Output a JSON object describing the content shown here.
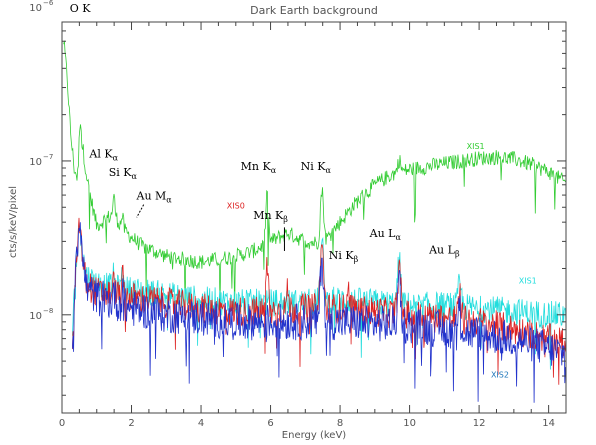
{
  "chart_data": {
    "type": "line",
    "title": "Dark Earth background",
    "xlabel": "Energy (keV)",
    "ylabel": "cts/s/keV/pixel",
    "xlim": [
      0,
      14.5
    ],
    "ylim": [
      2.3e-09,
      8e-07
    ],
    "yscale": "log",
    "x_ticks": [
      0,
      2,
      4,
      6,
      8,
      10,
      12,
      14
    ],
    "x_tick_labels": [
      "0",
      "2",
      "4",
      "6",
      "8",
      "10",
      "12",
      "14"
    ],
    "y_ticks": [
      1e-08,
      1e-07,
      1e-06
    ],
    "y_tick_labels": [
      {
        "base": "10",
        "exp": "−8"
      },
      {
        "base": "10",
        "exp": "−7"
      },
      {
        "base": "10",
        "exp": "−6"
      }
    ],
    "series": [
      {
        "name": "XIS1",
        "color": "#33cc33",
        "x": [
          0.05,
          0.15,
          0.25,
          0.35,
          0.5,
          0.6,
          0.75,
          1.0,
          1.25,
          1.5,
          1.75,
          2.0,
          2.3,
          3.0,
          4.0,
          5.0,
          5.5,
          6.0,
          6.5,
          7.0,
          7.5,
          8.0,
          8.5,
          9.0,
          9.5,
          10.0,
          10.5,
          11.0,
          11.5,
          12.0,
          12.5,
          13.0,
          13.5,
          14.0,
          14.5
        ],
        "y": [
          6e-07,
          3.5e-07,
          1.5e-07,
          9e-08,
          7e-08,
          1.2e-07,
          7e-08,
          3.8e-08,
          4.2e-08,
          4.5e-08,
          3.6e-08,
          3.2e-08,
          2.8e-08,
          2.4e-08,
          2.2e-08,
          2.4e-08,
          2.6e-08,
          3e-08,
          3.4e-08,
          3e-08,
          2.9e-08,
          4e-08,
          5.5e-08,
          7e-08,
          8.2e-08,
          8.8e-08,
          9.2e-08,
          9.6e-08,
          1e-07,
          1.04e-07,
          1.06e-07,
          1.03e-07,
          9.5e-08,
          8.5e-08,
          7.2e-08
        ]
      },
      {
        "name": "XIS0",
        "color": "#dd2222",
        "x": [
          0.3,
          0.4,
          0.5,
          0.7,
          1.0,
          1.5,
          2.0,
          3.0,
          4.0,
          5.0,
          6.0,
          7.0,
          8.0,
          9.0,
          10.0,
          11.0,
          12.0,
          13.0,
          14.0,
          14.5
        ],
        "y": [
          5e-09,
          2e-08,
          3e-08,
          1.6e-08,
          1.4e-08,
          1.35e-08,
          1.3e-08,
          1.2e-08,
          1.1e-08,
          1.05e-08,
          1.05e-08,
          1.1e-08,
          1.1e-08,
          1.05e-08,
          1e-08,
          9.5e-09,
          9e-09,
          8e-09,
          7e-09,
          6.5e-09
        ]
      },
      {
        "name": "XIS1",
        "color": "#22dddd",
        "x": [
          0.3,
          0.4,
          0.5,
          0.7,
          1.0,
          1.5,
          2.0,
          3.0,
          4.0,
          5.0,
          6.0,
          7.0,
          8.0,
          9.0,
          10.0,
          11.0,
          12.0,
          13.0,
          14.0,
          14.5
        ],
        "y": [
          8e-09,
          2.2e-08,
          3.2e-08,
          1.8e-08,
          1.6e-08,
          1.5e-08,
          1.45e-08,
          1.35e-08,
          1.25e-08,
          1.2e-08,
          1.2e-08,
          1.2e-08,
          1.25e-08,
          1.2e-08,
          1.15e-08,
          1.15e-08,
          1.1e-08,
          1.05e-08,
          1e-08,
          1e-08
        ]
      },
      {
        "name": "XIS2",
        "color": "#2233cc",
        "x": [
          0.3,
          0.4,
          0.5,
          0.7,
          1.0,
          1.5,
          2.0,
          3.0,
          4.0,
          5.0,
          6.0,
          7.0,
          8.0,
          9.0,
          10.0,
          11.0,
          12.0,
          13.0,
          14.0,
          14.5
        ],
        "y": [
          6e-09,
          2.5e-08,
          3.5e-08,
          1.5e-08,
          1.3e-08,
          1.2e-08,
          1.1e-08,
          1e-08,
          9.5e-09,
          9e-09,
          9e-09,
          9e-09,
          9e-09,
          8.8e-09,
          8.5e-09,
          8e-09,
          7.5e-09,
          7e-09,
          6e-09,
          5.5e-09
        ]
      }
    ],
    "peaks": [
      {
        "series": 0,
        "x": 0.52,
        "w": 0.04,
        "f": 2.4
      },
      {
        "series": 0,
        "x": 1.49,
        "w": 0.04,
        "f": 1.3
      },
      {
        "series": 0,
        "x": 1.74,
        "w": 0.04,
        "f": 1.2
      },
      {
        "series": 0,
        "x": 5.9,
        "w": 0.05,
        "f": 2.0
      },
      {
        "series": 0,
        "x": 7.48,
        "w": 0.06,
        "f": 2.2
      },
      {
        "series": 0,
        "x": 9.7,
        "w": 0.06,
        "f": 1.2
      },
      {
        "series": 1,
        "x": 0.52,
        "w": 0.04,
        "f": 1.4
      },
      {
        "series": 1,
        "x": 1.49,
        "w": 0.04,
        "f": 1.2
      },
      {
        "series": 1,
        "x": 1.74,
        "w": 0.04,
        "f": 1.3
      },
      {
        "series": 1,
        "x": 5.9,
        "w": 0.05,
        "f": 1.9
      },
      {
        "series": 1,
        "x": 6.49,
        "w": 0.05,
        "f": 1.3
      },
      {
        "series": 1,
        "x": 7.48,
        "w": 0.06,
        "f": 2.5
      },
      {
        "series": 1,
        "x": 8.26,
        "w": 0.05,
        "f": 1.3
      },
      {
        "series": 1,
        "x": 9.7,
        "w": 0.06,
        "f": 1.9
      },
      {
        "series": 1,
        "x": 11.44,
        "w": 0.06,
        "f": 1.4
      },
      {
        "series": 2,
        "x": 0.52,
        "w": 0.04,
        "f": 1.3
      },
      {
        "series": 2,
        "x": 1.49,
        "w": 0.04,
        "f": 1.2
      },
      {
        "series": 2,
        "x": 1.74,
        "w": 0.04,
        "f": 1.2
      },
      {
        "series": 2,
        "x": 7.48,
        "w": 0.06,
        "f": 2.3
      },
      {
        "series": 2,
        "x": 9.7,
        "w": 0.06,
        "f": 1.9
      },
      {
        "series": 2,
        "x": 11.44,
        "w": 0.06,
        "f": 1.4
      },
      {
        "series": 3,
        "x": 0.52,
        "w": 0.04,
        "f": 1.3
      },
      {
        "series": 3,
        "x": 1.49,
        "w": 0.04,
        "f": 1.2
      },
      {
        "series": 3,
        "x": 1.74,
        "w": 0.04,
        "f": 1.2
      },
      {
        "series": 3,
        "x": 7.48,
        "w": 0.06,
        "f": 2.5
      },
      {
        "series": 3,
        "x": 9.7,
        "w": 0.06,
        "f": 2.0
      },
      {
        "series": 3,
        "x": 11.44,
        "w": 0.06,
        "f": 1.4
      }
    ],
    "line_annotations": [
      {
        "name": "line-label-o-k",
        "base": "O K",
        "sub": "",
        "x": 0.52,
        "y": 9.3e-07
      },
      {
        "name": "line-label-al-ka",
        "base": "Al K",
        "sub": "α",
        "x": 1.2,
        "y": 1.05e-07
      },
      {
        "name": "line-label-si-ka",
        "base": "Si K",
        "sub": "α",
        "x": 1.75,
        "y": 8e-08
      },
      {
        "name": "line-label-au-ma",
        "base": "Au M",
        "sub": "α",
        "x": 2.65,
        "y": 5.6e-08
      },
      {
        "name": "line-label-mn-ka",
        "base": "Mn K",
        "sub": "α",
        "x": 5.65,
        "y": 8.7e-08
      },
      {
        "name": "line-label-mn-kb",
        "base": "Mn K",
        "sub": "β",
        "x": 6.0,
        "y": 4.2e-08
      },
      {
        "name": "line-label-ni-ka",
        "base": "Ni K",
        "sub": "α",
        "x": 7.3,
        "y": 8.7e-08
      },
      {
        "name": "line-label-ni-kb",
        "base": "Ni K",
        "sub": "β",
        "x": 8.1,
        "y": 2.3e-08
      },
      {
        "name": "line-label-au-la",
        "base": "Au L",
        "sub": "α",
        "x": 9.3,
        "y": 3.2e-08
      },
      {
        "name": "line-label-au-lb",
        "base": "Au L",
        "sub": "β",
        "x": 11.0,
        "y": 2.5e-08
      }
    ],
    "series_labels": [
      {
        "name": "series-label-xis1-green",
        "text": "XIS1",
        "color": "#33cc33",
        "x": 11.9,
        "y": 1.2e-07
      },
      {
        "name": "series-label-xis0",
        "text": "XIS0",
        "color": "#dd2222",
        "x": 5.0,
        "y": 4.9e-08
      },
      {
        "name": "series-label-xis1-cyan",
        "text": "XIS1",
        "color": "#22dddd",
        "x": 13.4,
        "y": 1.6e-08
      },
      {
        "name": "series-label-xis2",
        "text": "XIS2",
        "color": "#1f77bb",
        "x": 12.6,
        "y": 3.9e-09
      }
    ],
    "grid": false
  }
}
